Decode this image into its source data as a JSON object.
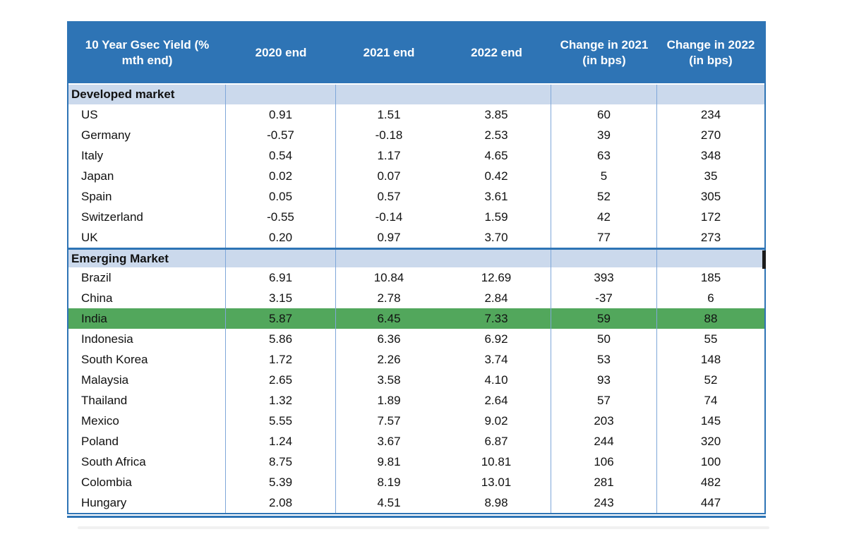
{
  "colors": {
    "header_bg": "#2E74B5",
    "header_text": "#FFFFFF",
    "section_bg": "#CBD9EC",
    "divider": "#7FA7D9",
    "border": "#2E74B5",
    "highlight_bg": "#52A75C",
    "text": "#000000"
  },
  "chart_data": {
    "type": "table",
    "title": "10 Year Gsec Yield (% mth end)",
    "header": [
      "10 Year Gsec Yield (% mth end)",
      "2020 end",
      "2021 end",
      "2022 end",
      "Change in 2021 (in bps)",
      "Change in 2022 (in bps)"
    ],
    "sections": [
      {
        "label": "Developed market",
        "rows": [
          {
            "country": "US",
            "values": [
              "0.91",
              "1.51",
              "3.85",
              "60",
              "234"
            ]
          },
          {
            "country": "Germany",
            "values": [
              "-0.57",
              "-0.18",
              "2.53",
              "39",
              "270"
            ]
          },
          {
            "country": "Italy",
            "values": [
              "0.54",
              "1.17",
              "4.65",
              "63",
              "348"
            ]
          },
          {
            "country": "Japan",
            "values": [
              "0.02",
              "0.07",
              "0.42",
              "5",
              "35"
            ]
          },
          {
            "country": "Spain",
            "values": [
              "0.05",
              "0.57",
              "3.61",
              "52",
              "305"
            ]
          },
          {
            "country": "Switzerland",
            "values": [
              "-0.55",
              "-0.14",
              "1.59",
              "42",
              "172"
            ]
          },
          {
            "country": "UK",
            "values": [
              "0.20",
              "0.97",
              "3.70",
              "77",
              "273"
            ]
          }
        ]
      },
      {
        "label": "Emerging Market",
        "rows": [
          {
            "country": "Brazil",
            "values": [
              "6.91",
              "10.84",
              "12.69",
              "393",
              "185"
            ]
          },
          {
            "country": "China",
            "values": [
              "3.15",
              "2.78",
              "2.84",
              "-37",
              "6"
            ]
          },
          {
            "country": "India",
            "values": [
              "5.87",
              "6.45",
              "7.33",
              "59",
              "88"
            ],
            "highlight": true
          },
          {
            "country": "Indonesia",
            "values": [
              "5.86",
              "6.36",
              "6.92",
              "50",
              "55"
            ]
          },
          {
            "country": "South Korea",
            "values": [
              "1.72",
              "2.26",
              "3.74",
              "53",
              "148"
            ]
          },
          {
            "country": "Malaysia",
            "values": [
              "2.65",
              "3.58",
              "4.10",
              "93",
              "52"
            ]
          },
          {
            "country": "Thailand",
            "values": [
              "1.32",
              "1.89",
              "2.64",
              "57",
              "74"
            ]
          },
          {
            "country": "Mexico",
            "values": [
              "5.55",
              "7.57",
              "9.02",
              "203",
              "145"
            ]
          },
          {
            "country": "Poland",
            "values": [
              "1.24",
              "3.67",
              "6.87",
              "244",
              "320"
            ]
          },
          {
            "country": "South Africa",
            "values": [
              "8.75",
              "9.81",
              "10.81",
              "106",
              "100"
            ]
          },
          {
            "country": "Colombia",
            "values": [
              "5.39",
              "8.19",
              "13.01",
              "281",
              "482"
            ]
          },
          {
            "country": "Hungary",
            "values": [
              "2.08",
              "4.51",
              "8.98",
              "243",
              "447"
            ]
          }
        ]
      }
    ]
  }
}
